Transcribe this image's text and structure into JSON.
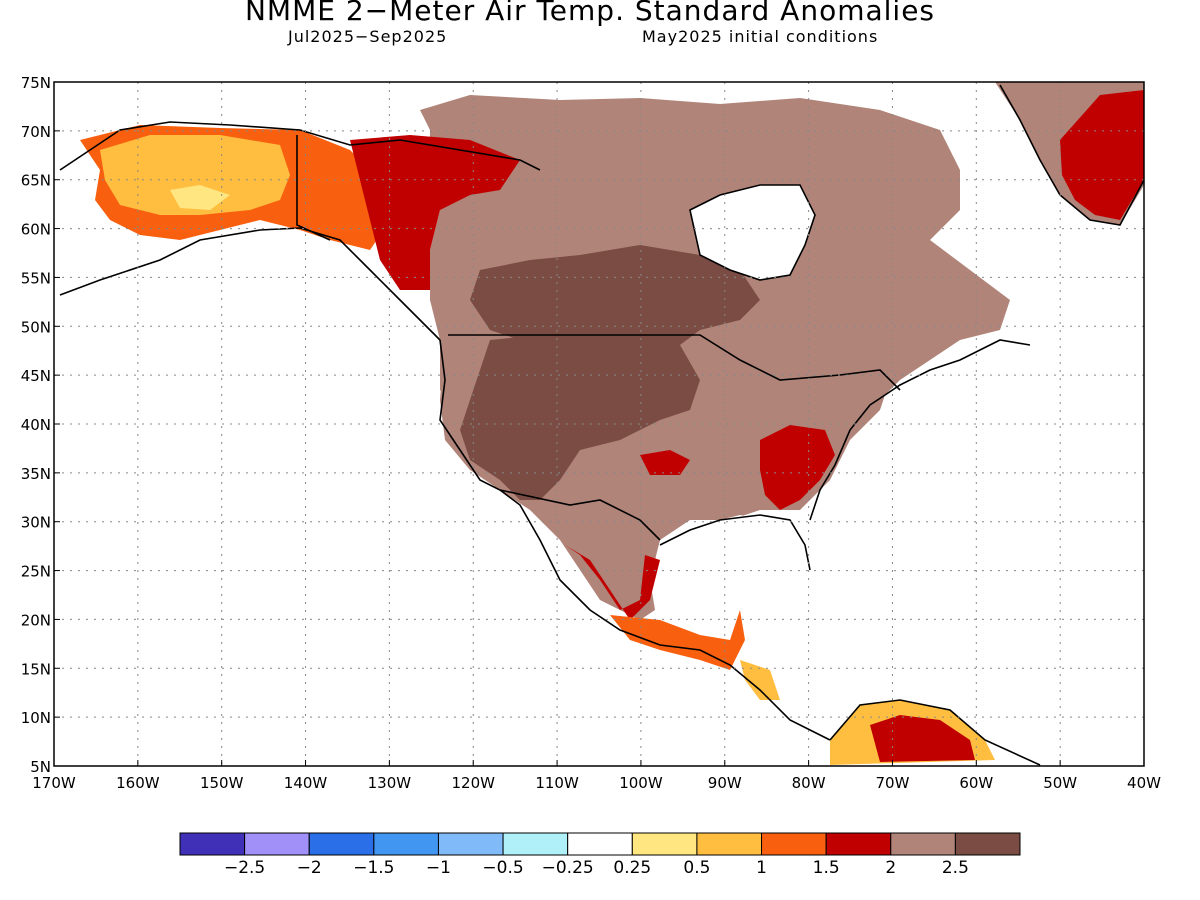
{
  "title": "NMME 2−Meter Air Temp. Standard Anomalies",
  "subtitle_left": "Jul2025−Sep2025",
  "subtitle_right": "May2025 initial conditions",
  "map": {
    "lat_labels": [
      "75N",
      "70N",
      "65N",
      "60N",
      "55N",
      "50N",
      "45N",
      "40N",
      "35N",
      "30N",
      "25N",
      "20N",
      "15N",
      "10N",
      "5N"
    ],
    "lon_labels": [
      "170W",
      "160W",
      "150W",
      "140W",
      "130W",
      "120W",
      "110W",
      "100W",
      "90W",
      "80W",
      "70W",
      "60W",
      "50W",
      "40W"
    ],
    "lat_range": [
      5,
      75
    ],
    "lon_range": [
      -170,
      -40
    ],
    "grid": "dotted"
  },
  "colorbar": {
    "colors": [
      "#4030b8",
      "#a090f8",
      "#2a6fe8",
      "#4096f0",
      "#80baf8",
      "#b0f0f8",
      "#ffffff",
      "#ffe680",
      "#ffbe40",
      "#f86010",
      "#c00000",
      "#b08478",
      "#7a4c44"
    ],
    "labels": [
      "−2.5",
      "−2",
      "−1.5",
      "−1",
      "−0.5",
      "−0.25",
      "0.25",
      "0.5",
      "1",
      "1.5",
      "2",
      "2.5"
    ]
  },
  "legend_categories": {
    "strong_positive": "#7a4c44",
    "positive": "#b08478",
    "red": "#c00000",
    "orange": "#f86010",
    "light_orange": "#ffbe40",
    "yellow": "#ffe680"
  }
}
